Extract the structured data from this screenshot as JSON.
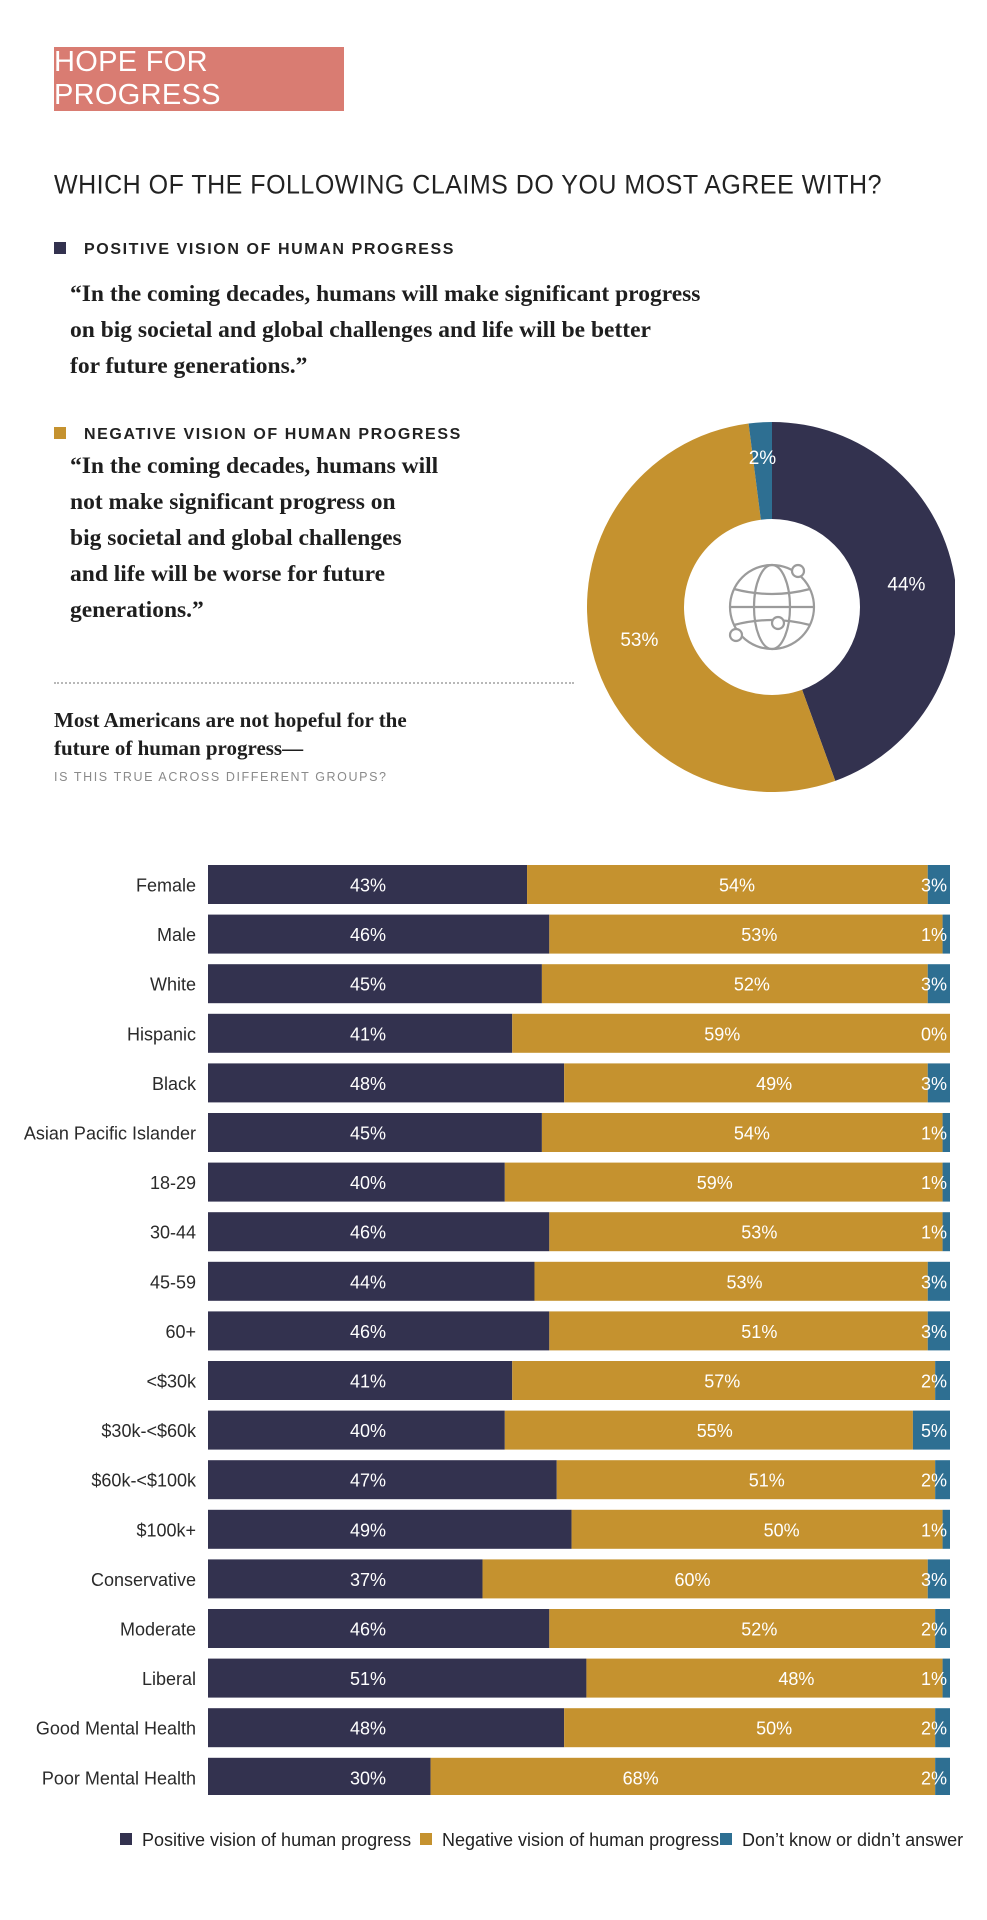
{
  "header": {
    "badge": "HOPE FOR PROGRESS",
    "question": "WHICH OF THE FOLLOWING CLAIMS DO YOU MOST AGREE WITH?"
  },
  "claims": {
    "positive": {
      "heading": "POSITIVE VISION OF HUMAN PROGRESS",
      "quote": "“In the coming decades, humans will make significant progress\non big societal and global challenges and life will be better\nfor future generations.”"
    },
    "negative": {
      "heading": "NEGATIVE VISION OF HUMAN PROGRESS",
      "quote": "“In the coming decades, humans will\nnot make significant progress on\nbig societal and global challenges\nand life will be worse for future\ngenerations.”"
    }
  },
  "summary": {
    "text": "Most Americans are not hopeful for the\nfuture of human progress—",
    "subquestion": "IS THIS TRUE ACROSS DIFFERENT GROUPS?"
  },
  "colors": {
    "positive": "#33324f",
    "negative": "#c5922f",
    "dont_know": "#2e6f92",
    "badge": "#d97c72"
  },
  "icons": {
    "donut_center": "globe-network-icon"
  },
  "legend": {
    "positive": "Positive vision of human progress",
    "negative": "Negative vision of human progress",
    "dont_know": "Don’t know or didn’t answer"
  },
  "chart_data": [
    {
      "type": "pie",
      "labels": [
        "Positive vision of human progress",
        "Negative vision of human progress",
        "Don’t know or didn’t answer"
      ],
      "values": [
        44,
        53,
        2
      ],
      "data_labels": [
        "44%",
        "53%",
        "2%"
      ]
    },
    {
      "type": "bar",
      "orientation": "horizontal",
      "stacked": true,
      "categories": [
        "Female",
        "Male",
        "White",
        "Hispanic",
        "Black",
        "Asian Pacific Islander",
        "18-29",
        "30-44",
        "45-59",
        "60+",
        "<$30k",
        "$30k-<$60k",
        "$60k-<$100k",
        "$100k+",
        "Conservative",
        "Moderate",
        "Liberal",
        "Good Mental Health",
        "Poor Mental Health"
      ],
      "series": [
        {
          "name": "Positive vision of human progress",
          "values": [
            43,
            46,
            45,
            41,
            48,
            45,
            40,
            46,
            44,
            46,
            41,
            40,
            47,
            49,
            37,
            46,
            51,
            48,
            30
          ]
        },
        {
          "name": "Negative vision of human progress",
          "values": [
            54,
            53,
            52,
            59,
            49,
            54,
            59,
            53,
            53,
            51,
            57,
            55,
            51,
            50,
            60,
            52,
            48,
            50,
            68
          ]
        },
        {
          "name": "Don’t know or didn’t answer",
          "values": [
            3,
            1,
            3,
            0,
            3,
            1,
            1,
            1,
            3,
            3,
            2,
            5,
            2,
            1,
            3,
            2,
            1,
            2,
            2
          ]
        }
      ],
      "legend_position": "bottom"
    }
  ]
}
